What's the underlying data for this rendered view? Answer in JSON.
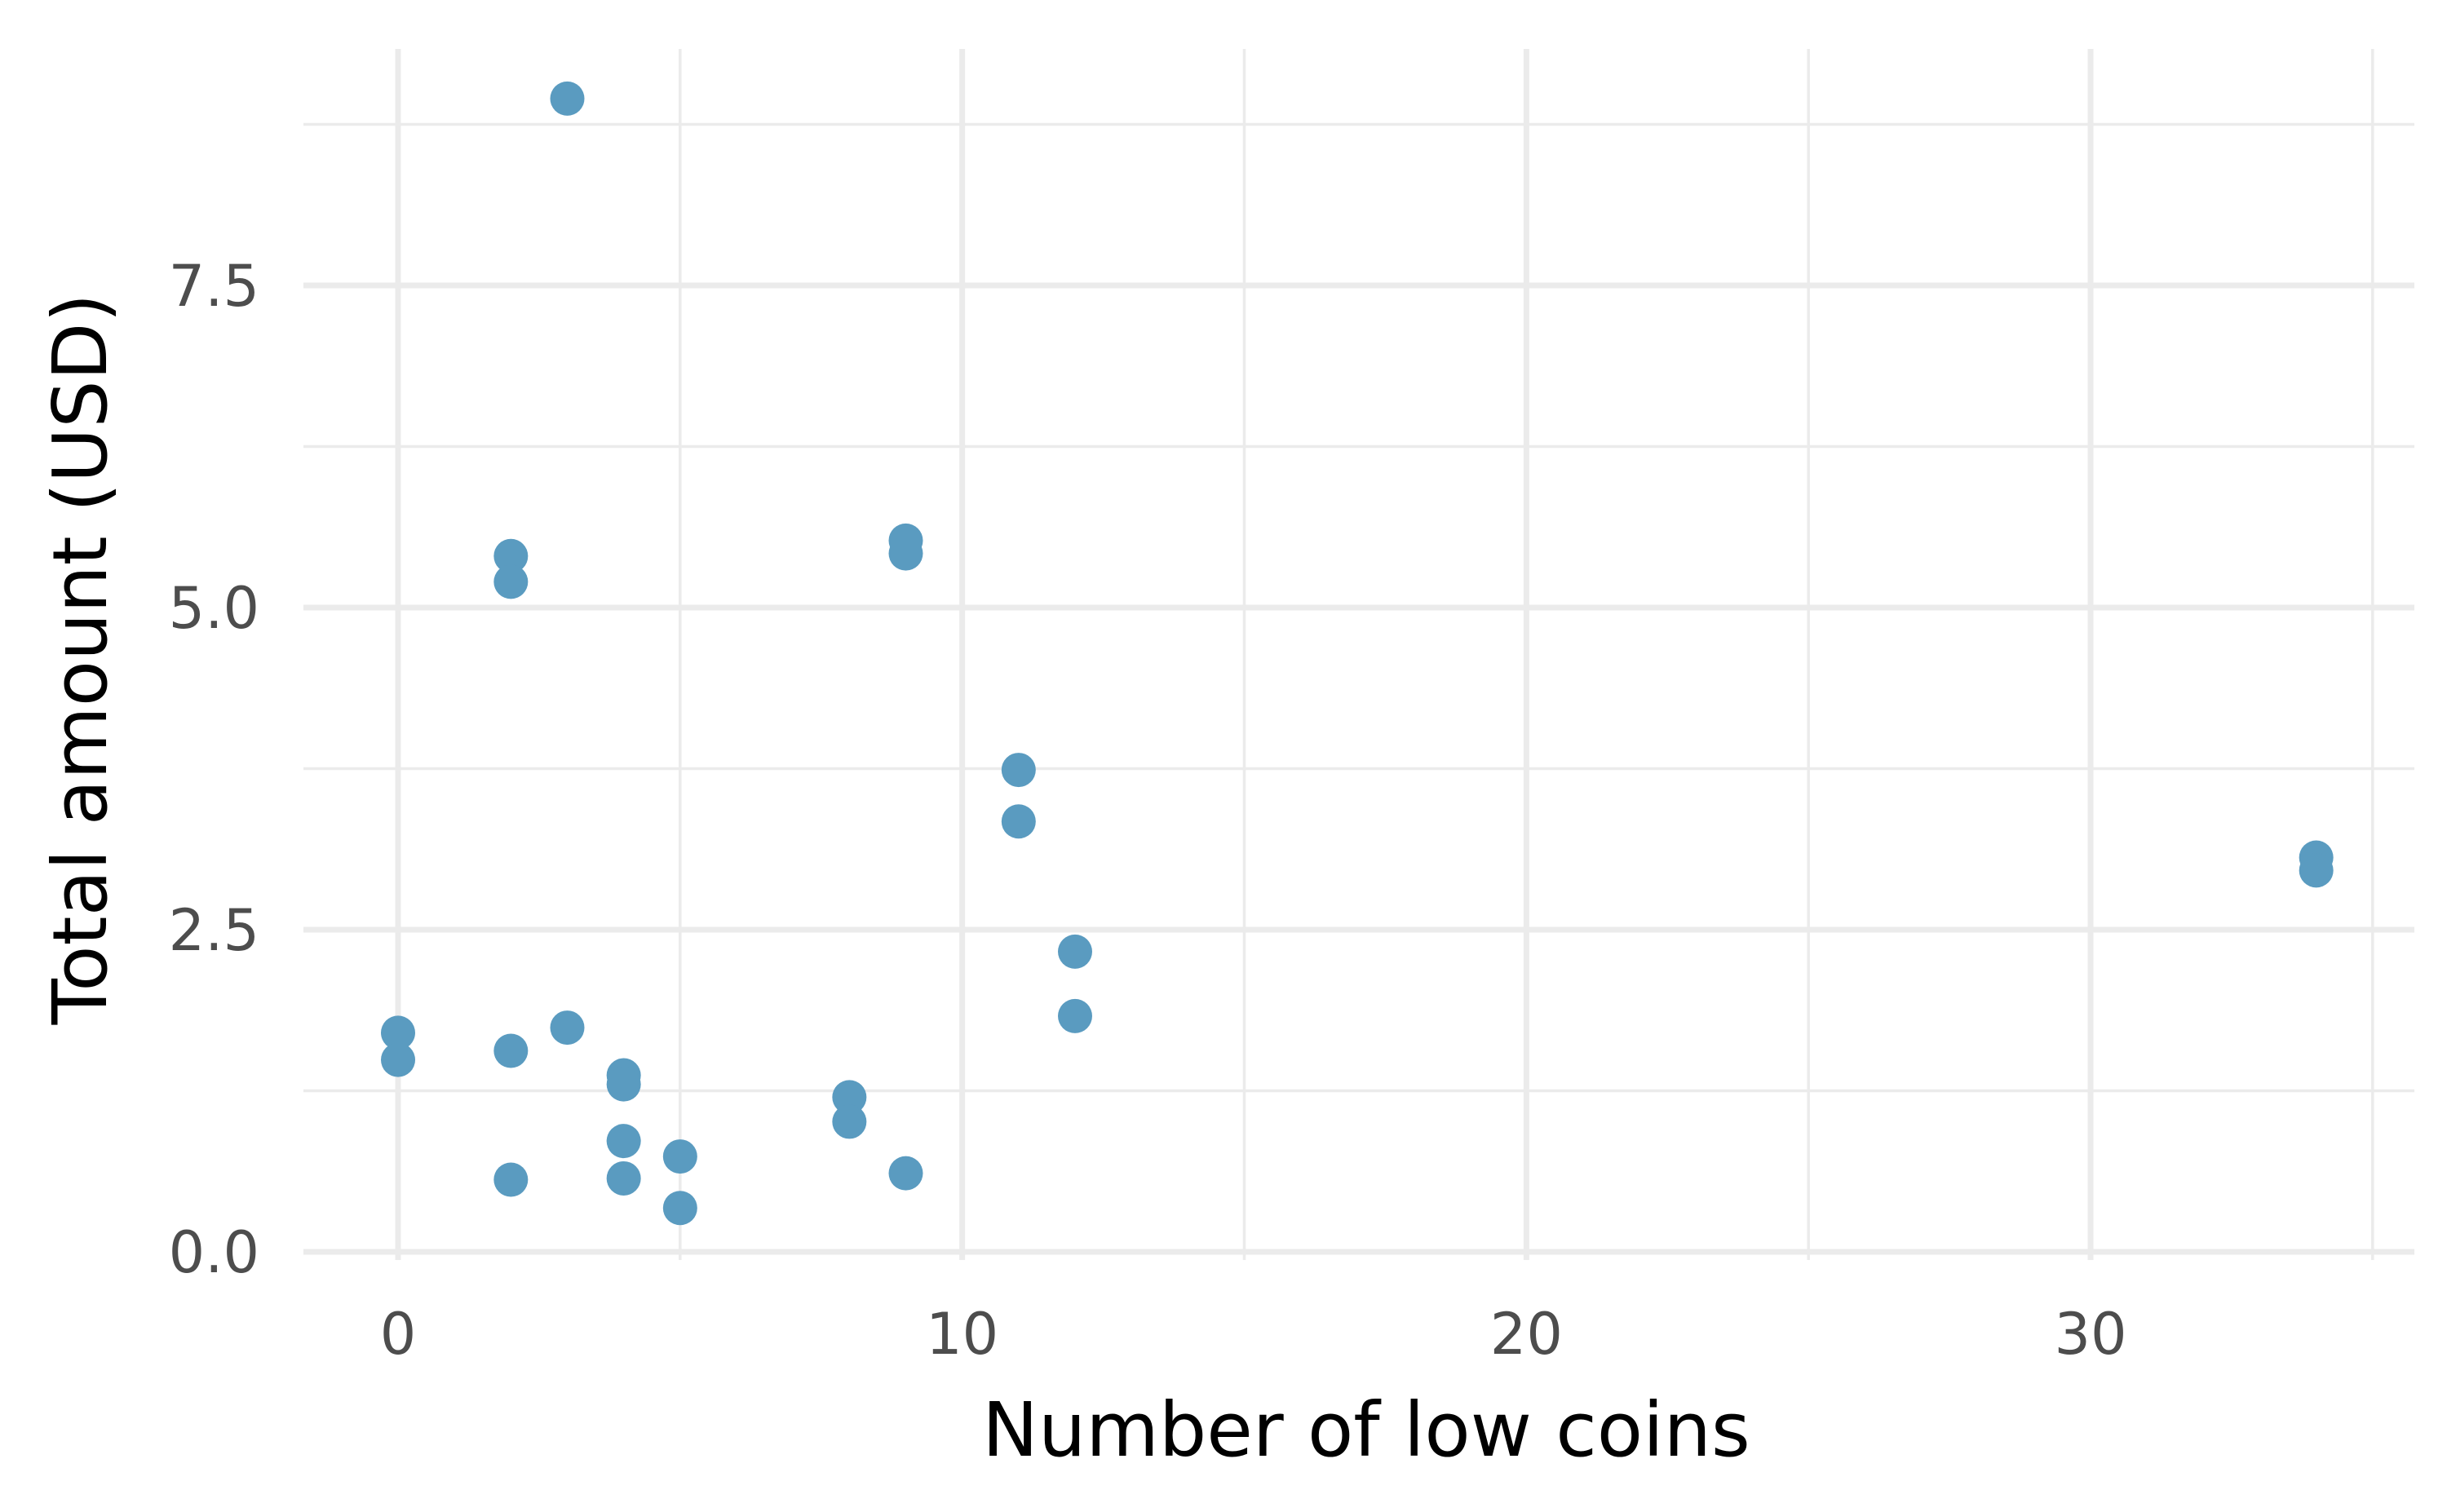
{
  "chart_data": {
    "type": "scatter",
    "title": "",
    "xlabel": "Number of low coins",
    "ylabel": "Total amount (USD)",
    "xlim": [
      -1.7,
      35.2
    ],
    "ylim": [
      -0.05,
      9.1
    ],
    "x_ticks": [
      0,
      10,
      20,
      30
    ],
    "x_tick_labels": [
      "0",
      "10",
      "20",
      "30"
    ],
    "x_minor_ticks": [
      -5,
      5,
      15,
      25,
      35
    ],
    "y_ticks": [
      0,
      2.5,
      5,
      7.5
    ],
    "y_tick_labels": [
      "0.0",
      "2.5",
      "5.0",
      "7.5"
    ],
    "y_minor_ticks": [
      1.25,
      3.75,
      6.25,
      8.75
    ],
    "grid": true,
    "legend": "none",
    "point_color": "#5a9bc0",
    "series": [
      {
        "x": [
          3,
          2,
          2,
          9,
          9,
          11,
          11,
          34,
          34,
          12,
          12,
          0,
          0,
          2,
          3,
          4,
          4,
          4,
          4,
          5,
          5,
          8,
          8,
          9,
          2
        ],
        "y": [
          8.95,
          5.4,
          5.2,
          5.52,
          5.42,
          3.74,
          3.34,
          3.06,
          2.96,
          2.33,
          1.83,
          1.7,
          1.49,
          1.56,
          1.74,
          1.37,
          1.3,
          0.86,
          0.57,
          0.74,
          0.34,
          1.2,
          1.01,
          0.61,
          0.56
        ]
      }
    ]
  }
}
